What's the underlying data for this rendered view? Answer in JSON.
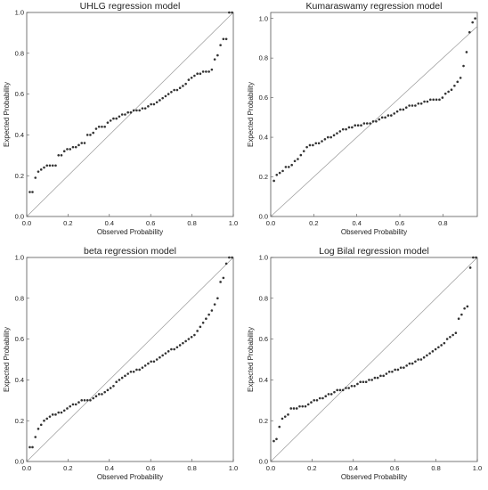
{
  "panels": [
    {
      "chart_data": {
        "type": "scatter",
        "title": "UHLG regression model",
        "xlabel": "Observed Probability",
        "ylabel": "Expected Probability",
        "xlim": [
          0.0,
          1.0
        ],
        "ylim": [
          0.0,
          1.0
        ],
        "xticks": [
          "0.0",
          "0.2",
          "0.4",
          "0.6",
          "0.8",
          "1.0"
        ],
        "yticks": [
          "0.0",
          "0.2",
          "0.4",
          "0.6",
          "0.8",
          "1.0"
        ],
        "reference_line": "y = x",
        "grid": false,
        "x": [
          0.015,
          0.028,
          0.042,
          0.056,
          0.07,
          0.084,
          0.098,
          0.112,
          0.126,
          0.14,
          0.154,
          0.168,
          0.182,
          0.196,
          0.21,
          0.224,
          0.238,
          0.252,
          0.266,
          0.28,
          0.294,
          0.308,
          0.322,
          0.336,
          0.35,
          0.364,
          0.378,
          0.392,
          0.406,
          0.42,
          0.434,
          0.448,
          0.462,
          0.476,
          0.49,
          0.504,
          0.518,
          0.532,
          0.546,
          0.56,
          0.574,
          0.588,
          0.602,
          0.616,
          0.63,
          0.644,
          0.658,
          0.672,
          0.686,
          0.7,
          0.714,
          0.728,
          0.742,
          0.756,
          0.77,
          0.784,
          0.798,
          0.812,
          0.826,
          0.84,
          0.854,
          0.868,
          0.882,
          0.896,
          0.91,
          0.924,
          0.938,
          0.952,
          0.966,
          0.98,
          0.994
        ],
        "y": [
          0.12,
          0.12,
          0.19,
          0.22,
          0.23,
          0.24,
          0.25,
          0.25,
          0.25,
          0.25,
          0.3,
          0.3,
          0.32,
          0.33,
          0.33,
          0.34,
          0.34,
          0.35,
          0.36,
          0.36,
          0.4,
          0.4,
          0.41,
          0.43,
          0.44,
          0.44,
          0.44,
          0.46,
          0.47,
          0.48,
          0.48,
          0.49,
          0.5,
          0.5,
          0.51,
          0.51,
          0.52,
          0.52,
          0.52,
          0.53,
          0.53,
          0.54,
          0.55,
          0.55,
          0.56,
          0.57,
          0.58,
          0.59,
          0.6,
          0.61,
          0.62,
          0.62,
          0.63,
          0.64,
          0.65,
          0.67,
          0.68,
          0.69,
          0.7,
          0.7,
          0.71,
          0.71,
          0.71,
          0.72,
          0.77,
          0.79,
          0.84,
          0.87,
          0.87,
          1.0,
          1.0
        ]
      }
    },
    {
      "chart_data": {
        "type": "scatter",
        "title": "Kumaraswamy regression model",
        "xlabel": "Observed Probability",
        "ylabel": "Expected Probability",
        "xlim": [
          0.0,
          0.96
        ],
        "ylim": [
          0.0,
          1.03
        ],
        "xticks": [
          "0.0",
          "0.2",
          "0.4",
          "0.6",
          "0.8"
        ],
        "yticks": [
          "0.0",
          "0.2",
          "0.4",
          "0.6",
          "0.8",
          "1.0"
        ],
        "reference_line": "y = x",
        "grid": false,
        "x": [
          0.015,
          0.028,
          0.042,
          0.056,
          0.07,
          0.084,
          0.098,
          0.112,
          0.126,
          0.14,
          0.154,
          0.168,
          0.182,
          0.196,
          0.21,
          0.224,
          0.238,
          0.252,
          0.266,
          0.28,
          0.294,
          0.308,
          0.322,
          0.336,
          0.35,
          0.364,
          0.378,
          0.392,
          0.406,
          0.42,
          0.434,
          0.448,
          0.462,
          0.476,
          0.49,
          0.504,
          0.518,
          0.532,
          0.546,
          0.56,
          0.574,
          0.588,
          0.602,
          0.616,
          0.63,
          0.644,
          0.658,
          0.672,
          0.686,
          0.7,
          0.714,
          0.728,
          0.742,
          0.756,
          0.77,
          0.784,
          0.798,
          0.812,
          0.826,
          0.84,
          0.854,
          0.868,
          0.882,
          0.896,
          0.91,
          0.924,
          0.938,
          0.95
        ],
        "y": [
          0.18,
          0.21,
          0.22,
          0.23,
          0.25,
          0.25,
          0.26,
          0.28,
          0.29,
          0.31,
          0.33,
          0.35,
          0.36,
          0.36,
          0.37,
          0.37,
          0.38,
          0.39,
          0.4,
          0.4,
          0.41,
          0.42,
          0.43,
          0.44,
          0.44,
          0.45,
          0.45,
          0.46,
          0.46,
          0.46,
          0.47,
          0.47,
          0.47,
          0.48,
          0.48,
          0.49,
          0.5,
          0.5,
          0.51,
          0.51,
          0.52,
          0.53,
          0.54,
          0.54,
          0.55,
          0.56,
          0.56,
          0.56,
          0.57,
          0.57,
          0.58,
          0.58,
          0.59,
          0.59,
          0.59,
          0.59,
          0.6,
          0.62,
          0.63,
          0.64,
          0.66,
          0.68,
          0.7,
          0.76,
          0.83,
          0.93,
          0.98,
          1.0
        ]
      }
    },
    {
      "chart_data": {
        "type": "scatter",
        "title": "beta regression model",
        "xlabel": "Observed Probability",
        "ylabel": "Expected Probability",
        "xlim": [
          0.0,
          1.0
        ],
        "ylim": [
          0.0,
          1.0
        ],
        "xticks": [
          "0.0",
          "0.2",
          "0.4",
          "0.6",
          "0.8",
          "1.0"
        ],
        "yticks": [
          "0.0",
          "0.2",
          "0.4",
          "0.6",
          "0.8",
          "1.0"
        ],
        "reference_line": "y = x",
        "grid": false,
        "x": [
          0.015,
          0.028,
          0.042,
          0.056,
          0.07,
          0.084,
          0.098,
          0.112,
          0.126,
          0.14,
          0.154,
          0.168,
          0.182,
          0.196,
          0.21,
          0.224,
          0.238,
          0.252,
          0.266,
          0.28,
          0.294,
          0.308,
          0.322,
          0.336,
          0.35,
          0.364,
          0.378,
          0.392,
          0.406,
          0.42,
          0.434,
          0.448,
          0.462,
          0.476,
          0.49,
          0.504,
          0.518,
          0.532,
          0.546,
          0.56,
          0.574,
          0.588,
          0.602,
          0.616,
          0.63,
          0.644,
          0.658,
          0.672,
          0.686,
          0.7,
          0.714,
          0.728,
          0.742,
          0.756,
          0.77,
          0.784,
          0.798,
          0.812,
          0.826,
          0.84,
          0.854,
          0.868,
          0.882,
          0.896,
          0.91,
          0.924,
          0.938,
          0.952,
          0.966,
          0.98,
          0.994
        ],
        "y": [
          0.07,
          0.07,
          0.12,
          0.16,
          0.18,
          0.2,
          0.21,
          0.22,
          0.23,
          0.23,
          0.24,
          0.24,
          0.25,
          0.26,
          0.27,
          0.28,
          0.28,
          0.29,
          0.3,
          0.3,
          0.3,
          0.3,
          0.31,
          0.32,
          0.33,
          0.33,
          0.34,
          0.35,
          0.36,
          0.37,
          0.39,
          0.4,
          0.41,
          0.42,
          0.43,
          0.44,
          0.44,
          0.45,
          0.45,
          0.46,
          0.47,
          0.48,
          0.49,
          0.49,
          0.5,
          0.51,
          0.52,
          0.53,
          0.54,
          0.55,
          0.55,
          0.56,
          0.57,
          0.58,
          0.59,
          0.6,
          0.61,
          0.62,
          0.64,
          0.66,
          0.68,
          0.7,
          0.72,
          0.74,
          0.77,
          0.8,
          0.88,
          0.9,
          0.97,
          1.0,
          1.0
        ]
      }
    },
    {
      "chart_data": {
        "type": "scatter",
        "title": "Log Bilal regression model",
        "xlabel": "Observed Probability",
        "ylabel": "Expected Probability",
        "xlim": [
          0.0,
          1.0
        ],
        "ylim": [
          0.0,
          1.0
        ],
        "xticks": [
          "0.0",
          "0.2",
          "0.4",
          "0.6",
          "0.8",
          "1.0"
        ],
        "yticks": [
          "0.0",
          "0.2",
          "0.4",
          "0.6",
          "0.8",
          "1.0"
        ],
        "reference_line": "y = x",
        "grid": false,
        "x": [
          0.015,
          0.028,
          0.042,
          0.056,
          0.07,
          0.084,
          0.098,
          0.112,
          0.126,
          0.14,
          0.154,
          0.168,
          0.182,
          0.196,
          0.21,
          0.224,
          0.238,
          0.252,
          0.266,
          0.28,
          0.294,
          0.308,
          0.322,
          0.336,
          0.35,
          0.364,
          0.378,
          0.392,
          0.406,
          0.42,
          0.434,
          0.448,
          0.462,
          0.476,
          0.49,
          0.504,
          0.518,
          0.532,
          0.546,
          0.56,
          0.574,
          0.588,
          0.602,
          0.616,
          0.63,
          0.644,
          0.658,
          0.672,
          0.686,
          0.7,
          0.714,
          0.728,
          0.742,
          0.756,
          0.77,
          0.784,
          0.798,
          0.812,
          0.826,
          0.84,
          0.854,
          0.868,
          0.882,
          0.896,
          0.91,
          0.924,
          0.938,
          0.952,
          0.966,
          0.98,
          0.994
        ],
        "y": [
          0.1,
          0.11,
          0.17,
          0.21,
          0.22,
          0.23,
          0.26,
          0.26,
          0.26,
          0.27,
          0.27,
          0.27,
          0.28,
          0.29,
          0.3,
          0.3,
          0.31,
          0.31,
          0.32,
          0.33,
          0.33,
          0.34,
          0.35,
          0.35,
          0.35,
          0.36,
          0.36,
          0.37,
          0.37,
          0.38,
          0.39,
          0.39,
          0.39,
          0.4,
          0.4,
          0.41,
          0.41,
          0.42,
          0.42,
          0.43,
          0.44,
          0.44,
          0.45,
          0.45,
          0.46,
          0.46,
          0.47,
          0.48,
          0.48,
          0.49,
          0.5,
          0.5,
          0.51,
          0.52,
          0.53,
          0.54,
          0.55,
          0.56,
          0.57,
          0.58,
          0.6,
          0.61,
          0.62,
          0.63,
          0.7,
          0.72,
          0.75,
          0.76,
          0.95,
          1.0,
          1.0
        ]
      }
    }
  ]
}
